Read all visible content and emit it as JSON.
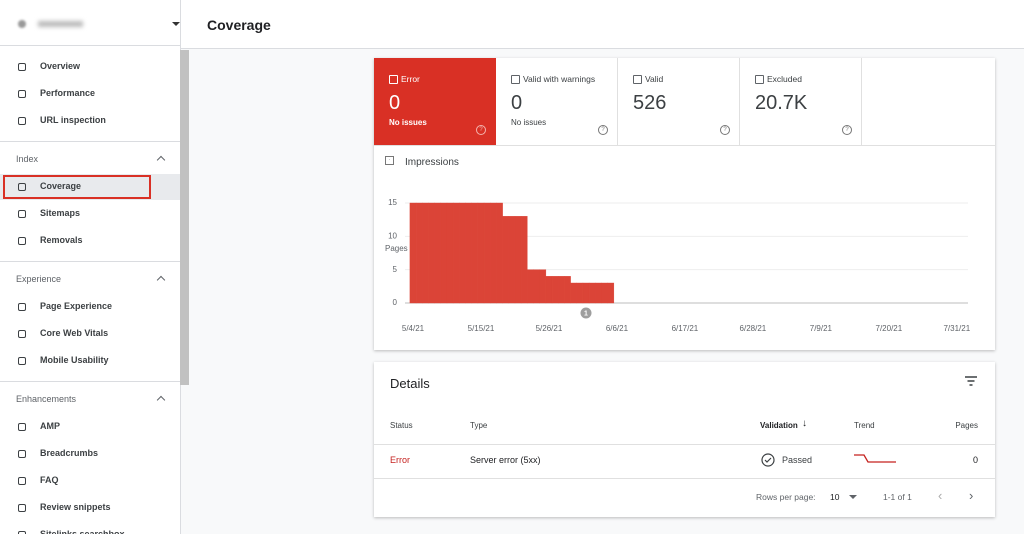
{
  "header": {
    "title": "Coverage"
  },
  "sidebar": {
    "top_items": [
      "Overview",
      "Performance",
      "URL inspection"
    ],
    "sections": [
      {
        "title": "Index",
        "items": [
          "Coverage",
          "Sitemaps",
          "Removals"
        ]
      },
      {
        "title": "Experience",
        "items": [
          "Page Experience",
          "Core Web Vitals",
          "Mobile Usability"
        ]
      },
      {
        "title": "Enhancements",
        "items": [
          "AMP",
          "Breadcrumbs",
          "FAQ",
          "Review snippets",
          "Sitelinks searchbox"
        ]
      }
    ]
  },
  "summary_tabs": [
    {
      "label": "Error",
      "value": 0,
      "note": "No issues"
    },
    {
      "label": "Valid with warnings",
      "value": 0,
      "note": "No issues"
    },
    {
      "label": "Valid",
      "value": 526
    },
    {
      "label": "Excluded",
      "value": "20.7K"
    }
  ],
  "chart_data": {
    "type": "bar",
    "toggle_label": "Impressions",
    "y_label": "Pages",
    "categories": [
      "5/4/21",
      null,
      null,
      null,
      null,
      null,
      null,
      null,
      null,
      null,
      null,
      "5/15/21",
      null,
      null,
      null,
      null,
      null,
      null,
      null,
      null,
      null,
      null,
      "5/26/21",
      null,
      null,
      null,
      null,
      null,
      null,
      null,
      null,
      null,
      null,
      "6/6/21",
      null,
      null,
      null,
      null,
      null,
      null,
      null,
      null,
      null,
      null,
      "6/17/21",
      null,
      null,
      null,
      null,
      null,
      null,
      null,
      null,
      null,
      null,
      "6/28/21",
      null,
      null,
      null,
      null,
      null,
      null,
      null,
      null,
      null,
      null,
      "7/9/21",
      null,
      null,
      null,
      null,
      null,
      null,
      null,
      null,
      null,
      null,
      "7/20/21",
      null,
      null,
      null,
      null,
      null,
      null,
      null,
      null,
      null,
      null,
      "7/31/21"
    ],
    "values": [
      15,
      15,
      15,
      15,
      15,
      15,
      15,
      15,
      15,
      15,
      15,
      15,
      15,
      15,
      15,
      13,
      13,
      13,
      13,
      5,
      5,
      5,
      4,
      4,
      4,
      4,
      3,
      3,
      3,
      3,
      3,
      3,
      3,
      0,
      0,
      0,
      0,
      0,
      0,
      0,
      0,
      0,
      0,
      0,
      0,
      0,
      0,
      0,
      0,
      0,
      0,
      0,
      0,
      0,
      0,
      0,
      0,
      0,
      0,
      0,
      0,
      0,
      0,
      0,
      0,
      0,
      0,
      0,
      0,
      0,
      0,
      0,
      0,
      0,
      0,
      0,
      0,
      0,
      0,
      0,
      0,
      0,
      0,
      0,
      0,
      0,
      0,
      0,
      0
    ],
    "color": "#db4437",
    "ylim": [
      0,
      15
    ],
    "yticks": [
      0,
      5,
      10,
      15
    ],
    "grid": true,
    "annotation": "1"
  },
  "details": {
    "title": "Details",
    "columns": [
      "Status",
      "Type",
      "Validation",
      "Trend",
      "Pages"
    ],
    "rows": [
      {
        "status": "Error",
        "type": "Server error (5xx)",
        "validation": "Passed",
        "pages": 0
      }
    ],
    "rows_per_page_label": "Rows per page:",
    "rows_per_page": 10,
    "range": "1-1 of 1"
  }
}
